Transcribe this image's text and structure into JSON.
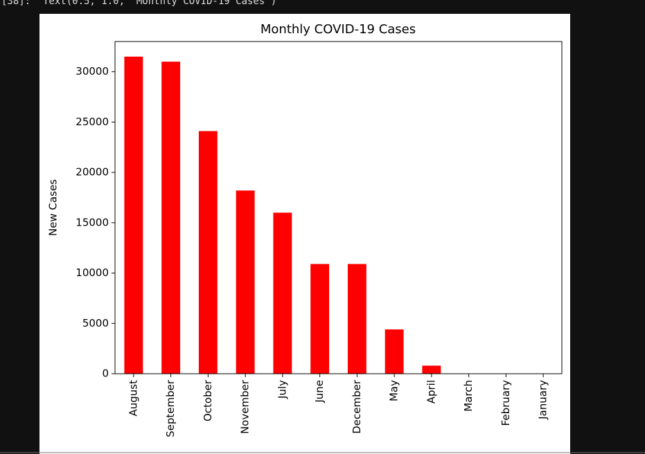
{
  "output_prompt": "[38]:",
  "output_text": "Text(0.5, 1.0, 'Monthly COVID-19 Cases')",
  "chart_data": {
    "type": "bar",
    "title": "Monthly COVID-19 Cases",
    "y_label": "New Cases",
    "categories": [
      "August",
      "September",
      "October",
      "November",
      "July",
      "June",
      "December",
      "May",
      "April",
      "March",
      "February",
      "January"
    ],
    "values": [
      31500,
      31000,
      24100,
      18200,
      16000,
      10900,
      10900,
      4400,
      800,
      0,
      0,
      0
    ],
    "color": "#ff0000",
    "ylim": [
      0,
      33000
    ],
    "yticks": [
      0,
      5000,
      10000,
      15000,
      20000,
      25000,
      30000
    ],
    "grid": false
  }
}
